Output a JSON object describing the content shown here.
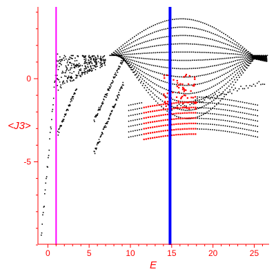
{
  "chart_data": {
    "type": "scatter",
    "xlabel": "E",
    "ylabel": "<J3>",
    "xlim": [
      -1.2,
      26.8
    ],
    "ylim": [
      -10.0,
      4.4
    ],
    "x_ticks": [
      0,
      5,
      10,
      15,
      20,
      25
    ],
    "x_tick_labels": [
      "0",
      "5",
      "10",
      "15",
      "20",
      "25"
    ],
    "y_ticks": [
      0,
      -5
    ],
    "y_tick_labels": [
      "0",
      "-5"
    ],
    "grid": false,
    "colors": {
      "axis": "#ff0000",
      "points": "#000000",
      "highlight": "#ff0000",
      "line_magenta": "#ff00ff",
      "line_blue": "#0000ff"
    },
    "vertical_lines": [
      {
        "x": 1.0,
        "color": "#ff00ff"
      },
      {
        "x": 14.8,
        "color": "#0000ff"
      }
    ],
    "series": [
      {
        "color": "#000000",
        "x": [],
        "y": []
      },
      {
        "color": "#ff0000",
        "x": [],
        "y": []
      }
    ]
  }
}
